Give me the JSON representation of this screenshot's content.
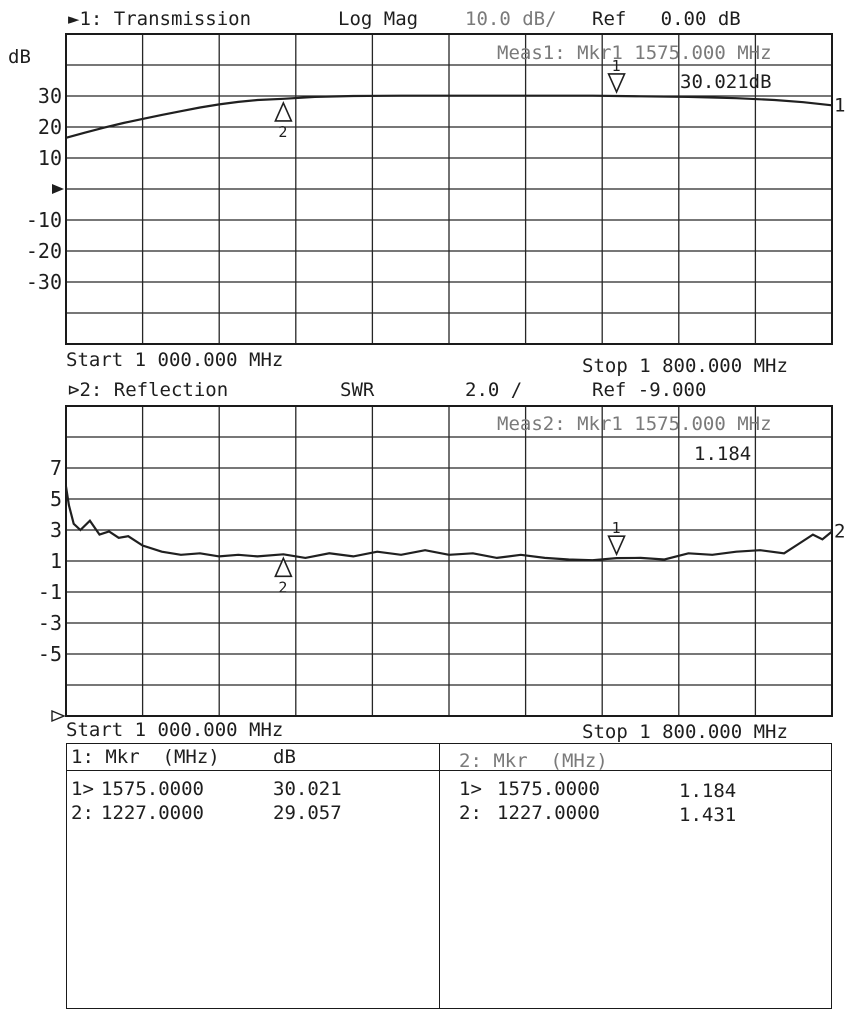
{
  "channel1": {
    "header": {
      "channel": "►1: Transmission",
      "format": "Log Mag",
      "scale": "10.0 dB/",
      "ref": "Ref   0.00 dB"
    },
    "unit_label": "dB",
    "marker_readout": {
      "line1": "Meas1: Mkr1 1575.000 MHz",
      "line2": "30.021dB"
    },
    "start": "Start 1 000.000 MHz",
    "stop": "Stop 1 800.000 MHz",
    "trace_end_label": "1",
    "marker_labels": {
      "m1": "1",
      "m2": "2"
    }
  },
  "channel2": {
    "header": {
      "channel": "⊳2: Reflection",
      "format": "SWR",
      "scale": "2.0 /",
      "ref": "Ref -9.000"
    },
    "marker_readout": {
      "line1": "Meas2: Mkr1 1575.000 MHz",
      "line2": "1.184"
    },
    "start": "Start 1 000.000 MHz",
    "stop": "Stop 1 800.000 MHz",
    "trace_end_label": "2",
    "marker_labels": {
      "m1": "1",
      "m2": "2"
    }
  },
  "chart_data": [
    {
      "type": "line",
      "title": "1: Transmission",
      "ylabel": "dB",
      "xlim": [
        1000,
        1800
      ],
      "ylim": [
        -50,
        50
      ],
      "yticks": [
        "30",
        "20",
        "10",
        "-10",
        "-20",
        "-30"
      ],
      "ytick_values": [
        30,
        20,
        10,
        -10,
        -20,
        -30
      ],
      "x": [
        1000,
        1020,
        1040,
        1060,
        1080,
        1100,
        1120,
        1140,
        1160,
        1180,
        1200,
        1227,
        1260,
        1300,
        1350,
        1400,
        1450,
        1500,
        1550,
        1575,
        1600,
        1650,
        1700,
        1740,
        1770,
        1800
      ],
      "series": [
        {
          "values": [
            16.5,
            18.2,
            19.8,
            21.3,
            22.6,
            23.9,
            25.1,
            26.3,
            27.3,
            28.1,
            28.7,
            29.1,
            29.7,
            30.0,
            30.1,
            30.1,
            30.1,
            30.1,
            30.1,
            30.0,
            29.9,
            29.7,
            29.3,
            28.7,
            28.0,
            27.0
          ]
        }
      ],
      "markers": [
        {
          "id": "1",
          "x": 1575,
          "y": 30.021
        },
        {
          "id": "2",
          "x": 1227,
          "y": 29.057
        }
      ]
    },
    {
      "type": "line",
      "title": "2: Reflection",
      "xlim": [
        1000,
        1800
      ],
      "ylim": [
        -9,
        11
      ],
      "yticks": [
        "7",
        "5",
        "3",
        "1",
        "-1",
        "-3",
        "-5"
      ],
      "ytick_values": [
        7,
        5,
        3,
        1,
        -1,
        -3,
        -5
      ],
      "x": [
        1000,
        1003,
        1008,
        1015,
        1025,
        1035,
        1045,
        1055,
        1065,
        1080,
        1100,
        1120,
        1140,
        1160,
        1180,
        1200,
        1227,
        1250,
        1275,
        1300,
        1325,
        1350,
        1375,
        1400,
        1425,
        1450,
        1475,
        1500,
        1525,
        1550,
        1575,
        1600,
        1625,
        1650,
        1675,
        1700,
        1725,
        1750,
        1765,
        1780,
        1790,
        1800
      ],
      "series": [
        {
          "values": [
            5.8,
            4.6,
            3.4,
            3.0,
            3.6,
            2.7,
            2.9,
            2.5,
            2.6,
            2.0,
            1.6,
            1.4,
            1.5,
            1.3,
            1.4,
            1.3,
            1.43,
            1.2,
            1.5,
            1.3,
            1.6,
            1.4,
            1.7,
            1.4,
            1.5,
            1.2,
            1.4,
            1.2,
            1.1,
            1.05,
            1.184,
            1.2,
            1.1,
            1.5,
            1.4,
            1.6,
            1.7,
            1.5,
            2.1,
            2.7,
            2.4,
            2.9
          ]
        }
      ],
      "markers": [
        {
          "id": "1",
          "x": 1575,
          "y": 1.184
        },
        {
          "id": "2",
          "x": 1227,
          "y": 1.431
        }
      ]
    }
  ],
  "marker_table": {
    "left": {
      "header_mkr": "1: Mkr  (MHz)",
      "header_unit": "dB",
      "rows": [
        {
          "label": "1>",
          "freq": "1575.0000",
          "value": "30.021"
        },
        {
          "label": "2:",
          "freq": "1227.0000",
          "value": "29.057"
        }
      ]
    },
    "right": {
      "header_mkr": "2: Mkr  (MHz)",
      "rows": [
        {
          "label": "1>",
          "freq": "1575.0000",
          "value": "1.184"
        },
        {
          "label": "2:",
          "freq": "1227.0000",
          "value": "1.431"
        }
      ]
    }
  }
}
